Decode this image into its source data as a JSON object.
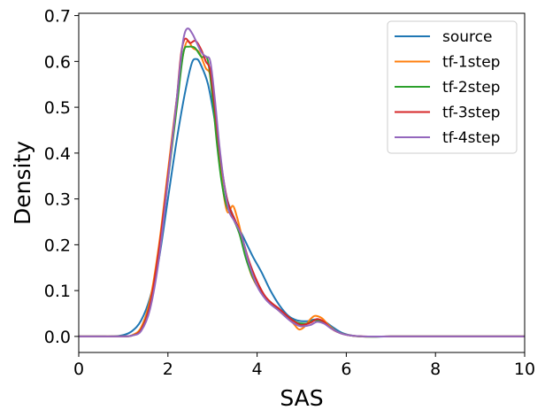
{
  "chart_data": {
    "type": "line",
    "xlabel": "SAS",
    "ylabel": "Density",
    "xlim": [
      0,
      10
    ],
    "ylim": [
      -0.035,
      0.705
    ],
    "xticks": [
      0,
      2,
      4,
      6,
      8,
      10
    ],
    "yticks": [
      0.0,
      0.1,
      0.2,
      0.3,
      0.4,
      0.5,
      0.6,
      0.7
    ],
    "xtick_labels": [
      "0",
      "2",
      "4",
      "6",
      "8",
      "10"
    ],
    "ytick_labels": [
      "0.0",
      "0.1",
      "0.2",
      "0.3",
      "0.4",
      "0.5",
      "0.6",
      "0.7"
    ],
    "grid": false,
    "legend_position": "top-right",
    "series": [
      {
        "name": "source",
        "color": "#1f77b4",
        "points": [
          [
            0,
            0
          ],
          [
            0.5,
            0
          ],
          [
            1,
            0.003
          ],
          [
            1.2,
            0.012
          ],
          [
            1.4,
            0.035
          ],
          [
            1.6,
            0.085
          ],
          [
            1.8,
            0.17
          ],
          [
            2.0,
            0.3
          ],
          [
            2.2,
            0.43
          ],
          [
            2.4,
            0.54
          ],
          [
            2.55,
            0.6
          ],
          [
            2.65,
            0.605
          ],
          [
            2.75,
            0.59
          ],
          [
            2.9,
            0.55
          ],
          [
            3.0,
            0.5
          ],
          [
            3.1,
            0.44
          ],
          [
            3.2,
            0.37
          ],
          [
            3.3,
            0.31
          ],
          [
            3.5,
            0.255
          ],
          [
            3.7,
            0.215
          ],
          [
            3.9,
            0.175
          ],
          [
            4.1,
            0.14
          ],
          [
            4.3,
            0.1
          ],
          [
            4.5,
            0.068
          ],
          [
            4.7,
            0.045
          ],
          [
            4.9,
            0.035
          ],
          [
            5.1,
            0.033
          ],
          [
            5.3,
            0.037
          ],
          [
            5.5,
            0.033
          ],
          [
            5.7,
            0.02
          ],
          [
            5.9,
            0.008
          ],
          [
            6.2,
            0.001
          ],
          [
            7,
            0
          ],
          [
            10,
            0
          ]
        ]
      },
      {
        "name": "tf-1step",
        "color": "#ff7f0e",
        "points": [
          [
            0,
            0
          ],
          [
            1,
            0
          ],
          [
            1.2,
            0.003
          ],
          [
            1.4,
            0.02
          ],
          [
            1.6,
            0.08
          ],
          [
            1.8,
            0.2
          ],
          [
            2.0,
            0.36
          ],
          [
            2.2,
            0.52
          ],
          [
            2.35,
            0.62
          ],
          [
            2.45,
            0.645
          ],
          [
            2.55,
            0.63
          ],
          [
            2.7,
            0.62
          ],
          [
            2.85,
            0.585
          ],
          [
            2.95,
            0.57
          ],
          [
            3.05,
            0.5
          ],
          [
            3.15,
            0.4
          ],
          [
            3.25,
            0.31
          ],
          [
            3.35,
            0.27
          ],
          [
            3.45,
            0.285
          ],
          [
            3.55,
            0.26
          ],
          [
            3.7,
            0.2
          ],
          [
            3.85,
            0.14
          ],
          [
            4.0,
            0.11
          ],
          [
            4.2,
            0.085
          ],
          [
            4.5,
            0.055
          ],
          [
            4.8,
            0.03
          ],
          [
            4.95,
            0.015
          ],
          [
            5.05,
            0.02
          ],
          [
            5.2,
            0.038
          ],
          [
            5.3,
            0.045
          ],
          [
            5.45,
            0.04
          ],
          [
            5.6,
            0.025
          ],
          [
            5.8,
            0.01
          ],
          [
            6.1,
            0.002
          ],
          [
            7,
            0
          ],
          [
            10,
            0
          ]
        ]
      },
      {
        "name": "tf-2step",
        "color": "#2ca02c",
        "points": [
          [
            0,
            0
          ],
          [
            1,
            0
          ],
          [
            1.2,
            0.002
          ],
          [
            1.4,
            0.015
          ],
          [
            1.6,
            0.07
          ],
          [
            1.8,
            0.18
          ],
          [
            2.0,
            0.34
          ],
          [
            2.2,
            0.5
          ],
          [
            2.35,
            0.62
          ],
          [
            2.45,
            0.632
          ],
          [
            2.6,
            0.63
          ],
          [
            2.75,
            0.61
          ],
          [
            2.9,
            0.6
          ],
          [
            3.0,
            0.52
          ],
          [
            3.1,
            0.42
          ],
          [
            3.2,
            0.34
          ],
          [
            3.3,
            0.29
          ],
          [
            3.45,
            0.26
          ],
          [
            3.6,
            0.225
          ],
          [
            3.75,
            0.17
          ],
          [
            3.9,
            0.13
          ],
          [
            4.1,
            0.095
          ],
          [
            4.3,
            0.075
          ],
          [
            4.6,
            0.05
          ],
          [
            4.9,
            0.03
          ],
          [
            5.1,
            0.028
          ],
          [
            5.3,
            0.035
          ],
          [
            5.45,
            0.032
          ],
          [
            5.6,
            0.022
          ],
          [
            5.8,
            0.01
          ],
          [
            6.1,
            0.002
          ],
          [
            7,
            0
          ],
          [
            10,
            0
          ]
        ]
      },
      {
        "name": "tf-3step",
        "color": "#d62728",
        "points": [
          [
            0,
            0
          ],
          [
            1,
            0
          ],
          [
            1.2,
            0.002
          ],
          [
            1.4,
            0.015
          ],
          [
            1.6,
            0.07
          ],
          [
            1.8,
            0.19
          ],
          [
            2.0,
            0.35
          ],
          [
            2.2,
            0.52
          ],
          [
            2.3,
            0.62
          ],
          [
            2.4,
            0.65
          ],
          [
            2.5,
            0.64
          ],
          [
            2.6,
            0.645
          ],
          [
            2.75,
            0.625
          ],
          [
            2.85,
            0.6
          ],
          [
            2.95,
            0.58
          ],
          [
            3.05,
            0.5
          ],
          [
            3.15,
            0.41
          ],
          [
            3.25,
            0.34
          ],
          [
            3.35,
            0.29
          ],
          [
            3.5,
            0.255
          ],
          [
            3.65,
            0.22
          ],
          [
            3.8,
            0.17
          ],
          [
            4.0,
            0.12
          ],
          [
            4.2,
            0.085
          ],
          [
            4.5,
            0.06
          ],
          [
            4.8,
            0.035
          ],
          [
            5.0,
            0.025
          ],
          [
            5.2,
            0.03
          ],
          [
            5.35,
            0.038
          ],
          [
            5.5,
            0.032
          ],
          [
            5.65,
            0.018
          ],
          [
            5.9,
            0.006
          ],
          [
            6.2,
            0.001
          ],
          [
            7,
            0
          ],
          [
            10,
            0
          ]
        ]
      },
      {
        "name": "tf-4step",
        "color": "#9467bd",
        "points": [
          [
            0,
            0
          ],
          [
            1,
            0
          ],
          [
            1.2,
            0.002
          ],
          [
            1.4,
            0.012
          ],
          [
            1.6,
            0.06
          ],
          [
            1.8,
            0.17
          ],
          [
            2.0,
            0.34
          ],
          [
            2.2,
            0.52
          ],
          [
            2.35,
            0.65
          ],
          [
            2.45,
            0.672
          ],
          [
            2.55,
            0.66
          ],
          [
            2.65,
            0.64
          ],
          [
            2.75,
            0.62
          ],
          [
            2.85,
            0.61
          ],
          [
            2.95,
            0.6
          ],
          [
            3.05,
            0.52
          ],
          [
            3.15,
            0.42
          ],
          [
            3.25,
            0.34
          ],
          [
            3.35,
            0.28
          ],
          [
            3.5,
            0.25
          ],
          [
            3.65,
            0.22
          ],
          [
            3.8,
            0.165
          ],
          [
            4.0,
            0.11
          ],
          [
            4.2,
            0.08
          ],
          [
            4.5,
            0.055
          ],
          [
            4.8,
            0.03
          ],
          [
            5.0,
            0.022
          ],
          [
            5.2,
            0.025
          ],
          [
            5.35,
            0.032
          ],
          [
            5.5,
            0.028
          ],
          [
            5.65,
            0.018
          ],
          [
            5.9,
            0.006
          ],
          [
            6.2,
            0.001
          ],
          [
            7,
            0
          ],
          [
            10,
            0
          ]
        ]
      }
    ]
  }
}
